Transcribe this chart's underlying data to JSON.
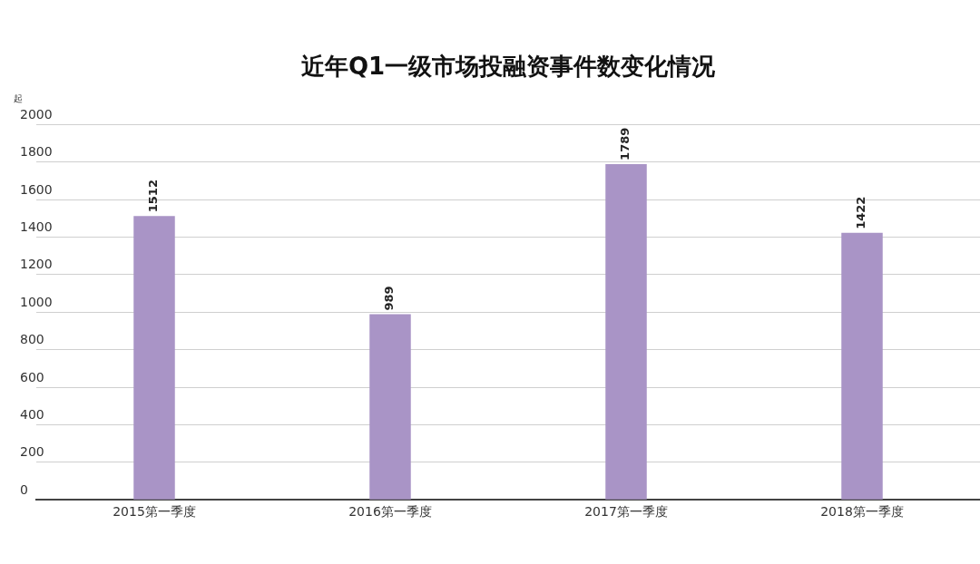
{
  "chart_data": {
    "type": "bar",
    "title": "近年Q1一级市场投融资事件数变化情况",
    "ylabel": "起",
    "categories": [
      "2015第一季度",
      "2016第一季度",
      "2017第一季度",
      "2018第一季度"
    ],
    "values": [
      1512,
      989,
      1789,
      1422
    ],
    "color": "#a994c6",
    "ylim": [
      0,
      2000
    ],
    "yticks": [
      0,
      200,
      400,
      600,
      800,
      1000,
      1200,
      1400,
      1600,
      1800,
      2000
    ],
    "grid": "y",
    "data_labels": true
  }
}
